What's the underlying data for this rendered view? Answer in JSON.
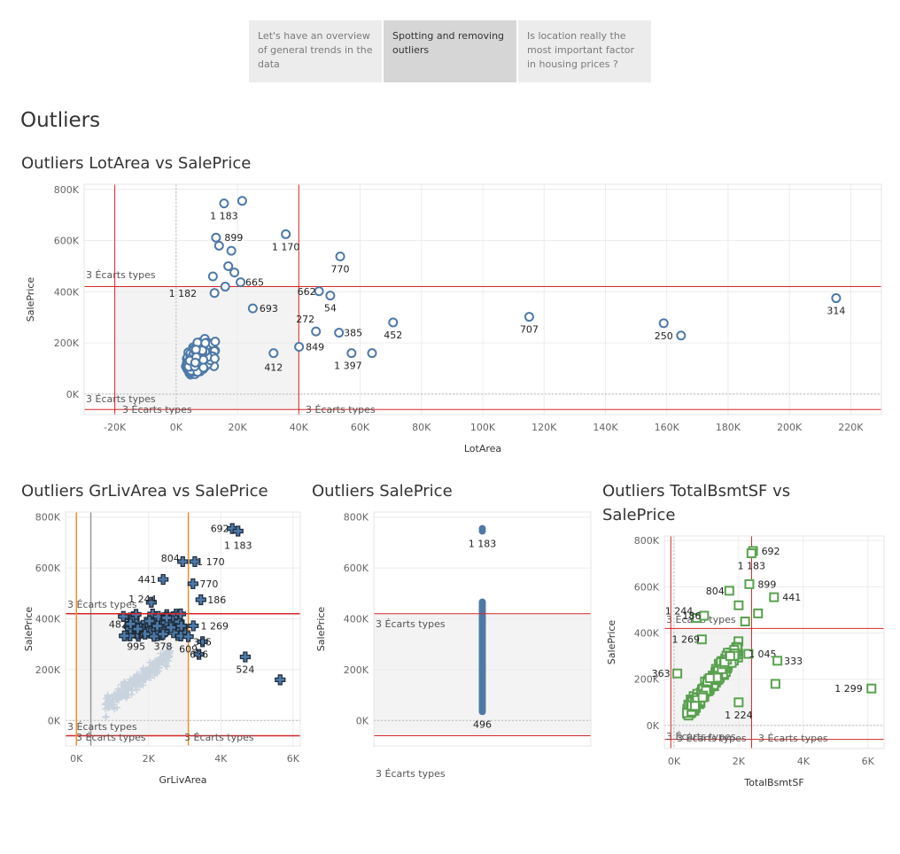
{
  "nav": {
    "tabs": [
      {
        "label": "Let's have an overview of general trends in the data",
        "active": false
      },
      {
        "label": "Spotting and removing outliers",
        "active": true
      },
      {
        "label": "Is location really the most important factor in housing prices ?",
        "active": false
      }
    ]
  },
  "page_title": "Outliers",
  "colors": {
    "blue": "#4e79a7",
    "green": "#59a14f",
    "orange": "#f28e2b",
    "red": "#d62728",
    "lightgray": "#c9d3de"
  },
  "chart_data": [
    {
      "id": "lotarea",
      "type": "scatter",
      "title": "Outliers LotArea vs SalePrice",
      "xlabel": "LotArea",
      "ylabel": "SalePrice",
      "xlim": [
        -30000,
        230000
      ],
      "ylim": [
        -80000,
        820000
      ],
      "xticks": [
        -20000,
        0,
        20000,
        40000,
        60000,
        80000,
        100000,
        120000,
        140000,
        160000,
        180000,
        200000,
        220000
      ],
      "xtick_labels": [
        "-20K",
        "0K",
        "20K",
        "40K",
        "60K",
        "80K",
        "100K",
        "120K",
        "140K",
        "160K",
        "180K",
        "200K",
        "220K"
      ],
      "yticks": [
        0,
        200000,
        400000,
        600000,
        800000
      ],
      "ytick_labels": [
        "0K",
        "200K",
        "400K",
        "600K",
        "800K"
      ],
      "marker": "circle",
      "ref_lines": [
        {
          "axis": "y",
          "value": 420000,
          "label": "3 Écarts types"
        },
        {
          "axis": "y",
          "value": -60000,
          "label": "3 Écarts types"
        },
        {
          "axis": "x",
          "value": -20000,
          "label": "3 Écarts types"
        },
        {
          "axis": "x",
          "value": 40000,
          "label": "3 Écarts types"
        }
      ],
      "points": [
        {
          "x": 15623,
          "y": 745000,
          "label": "1 183"
        },
        {
          "x": 21535,
          "y": 755000,
          "label": ""
        },
        {
          "x": 13000,
          "y": 611657,
          "label": "899"
        },
        {
          "x": 35760,
          "y": 625000,
          "label": "1 170"
        },
        {
          "x": 53504,
          "y": 538000,
          "label": "770"
        },
        {
          "x": 12500,
          "y": 395000,
          "label": "1 182"
        },
        {
          "x": 21000,
          "y": 437000,
          "label": "665"
        },
        {
          "x": 46589,
          "y": 402000,
          "label": "662"
        },
        {
          "x": 50271,
          "y": 385000,
          "label": "54"
        },
        {
          "x": 25000,
          "y": 335000,
          "label": "693"
        },
        {
          "x": 45600,
          "y": 245000,
          "label": "272"
        },
        {
          "x": 40094,
          "y": 184750,
          "label": "849"
        },
        {
          "x": 53107,
          "y": 240000,
          "label": "385"
        },
        {
          "x": 70761,
          "y": 280000,
          "label": "452"
        },
        {
          "x": 31770,
          "y": 160000,
          "label": "412"
        },
        {
          "x": 57200,
          "y": 160000,
          "label": "1 397"
        },
        {
          "x": 115149,
          "y": 302000,
          "label": "707"
        },
        {
          "x": 159000,
          "y": 277000,
          "label": "250"
        },
        {
          "x": 164660,
          "y": 228950,
          "label": ""
        },
        {
          "x": 215245,
          "y": 375000,
          "label": "314"
        },
        {
          "x": 63887,
          "y": 160000,
          "label": ""
        },
        {
          "x": 17000,
          "y": 500000,
          "label": ""
        },
        {
          "x": 18000,
          "y": 560000,
          "label": ""
        },
        {
          "x": 14000,
          "y": 580000,
          "label": ""
        },
        {
          "x": 19000,
          "y": 475000,
          "label": ""
        },
        {
          "x": 12000,
          "y": 460000,
          "label": ""
        },
        {
          "x": 16000,
          "y": 420000,
          "label": ""
        }
      ]
    },
    {
      "id": "grlivarea",
      "type": "scatter",
      "title": "Outliers GrLivArea vs SalePrice",
      "xlabel": "GrLivArea",
      "ylabel": "SalePrice",
      "xlim": [
        -300,
        6200
      ],
      "ylim": [
        -100000,
        820000
      ],
      "xticks": [
        0,
        2000,
        4000,
        6000
      ],
      "xtick_labels": [
        "0K",
        "2K",
        "4K",
        "6K"
      ],
      "yticks": [
        0,
        200000,
        400000,
        600000,
        800000
      ],
      "ytick_labels": [
        "0K",
        "200K",
        "400K",
        "600K",
        "800K"
      ],
      "marker": "plus",
      "ref_lines": [
        {
          "axis": "y",
          "value": 420000,
          "label": "3 Écarts types"
        },
        {
          "axis": "y",
          "value": -60000,
          "label": "3 Écarts types"
        },
        {
          "axis": "x",
          "value": 0,
          "label": "3 Écarts types"
        },
        {
          "axis": "x",
          "value": 3100,
          "label": "3 Écarts types"
        }
      ],
      "points": [
        {
          "x": 4316,
          "y": 755000,
          "label": "692"
        },
        {
          "x": 4476,
          "y": 745000,
          "label": "1 183"
        },
        {
          "x": 3279,
          "y": 625000,
          "label": "1 170"
        },
        {
          "x": 2945,
          "y": 625000,
          "label": "804"
        },
        {
          "x": 2402,
          "y": 555000,
          "label": "441"
        },
        {
          "x": 3228,
          "y": 538000,
          "label": "770"
        },
        {
          "x": 2076,
          "y": 465000,
          "label": "1 244"
        },
        {
          "x": 3447,
          "y": 475000,
          "label": "186"
        },
        {
          "x": 3238,
          "y": 372500,
          "label": "1 269"
        },
        {
          "x": 1500,
          "y": 380000,
          "label": "482"
        },
        {
          "x": 1900,
          "y": 340000,
          "label": "995"
        },
        {
          "x": 2400,
          "y": 340000,
          "label": "378"
        },
        {
          "x": 3100,
          "y": 330000,
          "label": "609"
        },
        {
          "x": 1700,
          "y": 360000,
          "label": "16"
        },
        {
          "x": 3493,
          "y": 310000,
          "label": "305"
        },
        {
          "x": 3395,
          "y": 260000,
          "label": "636"
        },
        {
          "x": 4676,
          "y": 250000,
          "label": "524"
        },
        {
          "x": 5642,
          "y": 160000,
          "label": ""
        }
      ]
    },
    {
      "id": "saleprice",
      "type": "scatter",
      "title": "Outliers SalePrice",
      "xlabel": "",
      "ylabel": "SalePrice",
      "ylim": [
        -100000,
        820000
      ],
      "yticks": [
        0,
        200000,
        400000,
        600000,
        800000
      ],
      "ytick_labels": [
        "0K",
        "200K",
        "400K",
        "600K",
        "800K"
      ],
      "marker": "circle",
      "ref_lines": [
        {
          "axis": "y",
          "value": 420000,
          "label": "3 Écarts types"
        },
        {
          "axis": "y",
          "value": -60000,
          "label": "3 Écarts types"
        }
      ],
      "points": [
        {
          "y": 755000,
          "label": ""
        },
        {
          "y": 745000,
          "label": "1 183"
        },
        {
          "y": 34900,
          "label": "496"
        }
      ]
    },
    {
      "id": "totalbsmtsf",
      "type": "scatter",
      "title": "Outliers TotalBsmtSF vs SalePrice",
      "xlabel": "TotalBsmtSF",
      "ylabel": "SalePrice",
      "xlim": [
        -300,
        6500
      ],
      "ylim": [
        -100000,
        820000
      ],
      "xticks": [
        0,
        2000,
        4000,
        6000
      ],
      "xtick_labels": [
        "0K",
        "2K",
        "4K",
        "6K"
      ],
      "yticks": [
        0,
        200000,
        400000,
        600000,
        800000
      ],
      "ytick_labels": [
        "0K",
        "200K",
        "400K",
        "600K",
        "800K"
      ],
      "marker": "square",
      "ref_lines": [
        {
          "axis": "y",
          "value": 420000,
          "label": "3 Écarts types"
        },
        {
          "axis": "y",
          "value": -60000,
          "label": "3 Écarts types"
        },
        {
          "axis": "x",
          "value": -100,
          "label": "3 Écarts types"
        },
        {
          "axis": "x",
          "value": 2400,
          "label": "3 Écarts types"
        }
      ],
      "points": [
        {
          "x": 2444,
          "y": 755000,
          "label": "692"
        },
        {
          "x": 2396,
          "y": 745000,
          "label": "1 183"
        },
        {
          "x": 2330,
          "y": 611657,
          "label": "899"
        },
        {
          "x": 1710,
          "y": 582933,
          "label": "804"
        },
        {
          "x": 3094,
          "y": 555000,
          "label": "441"
        },
        {
          "x": 700,
          "y": 465000,
          "label": "1 244"
        },
        {
          "x": 930,
          "y": 475000,
          "label": "186"
        },
        {
          "x": 860,
          "y": 372500,
          "label": "1 269"
        },
        {
          "x": 2300,
          "y": 310000,
          "label": "1 045"
        },
        {
          "x": 3200,
          "y": 280000,
          "label": "333"
        },
        {
          "x": 100,
          "y": 225000,
          "label": "363"
        },
        {
          "x": 6110,
          "y": 160000,
          "label": "1 299"
        },
        {
          "x": 2000,
          "y": 100000,
          "label": "1 224"
        },
        {
          "x": 3138,
          "y": 180000,
          "label": ""
        },
        {
          "x": 2600,
          "y": 485000,
          "label": ""
        },
        {
          "x": 2200,
          "y": 450000,
          "label": ""
        },
        {
          "x": 2000,
          "y": 520000,
          "label": ""
        }
      ]
    }
  ]
}
